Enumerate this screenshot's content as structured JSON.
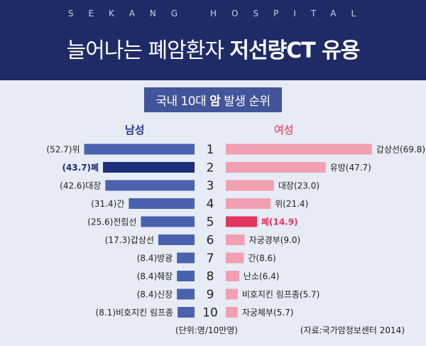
{
  "header": {
    "eyebrow": "SEKANG HOSPITAL",
    "title_plain": "늘어나는 폐암환자 ",
    "title_bold": "저선량CT 유용"
  },
  "subtitle": {
    "prefix": "국내 10대 ",
    "bold": "암",
    "suffix": " 발생 순위"
  },
  "columns": {
    "male": "남성",
    "female": "여성"
  },
  "footer": {
    "unit": "(단위:명/10만명)",
    "source": "(자료:국가암정보센터 2014)"
  },
  "colors": {
    "male_bar": "#4a62ae",
    "male_highlight": "#1c2d7a",
    "female_bar": "#f2a0b1",
    "female_highlight": "#e0365f",
    "highlight_text_male": "#1c2d7a",
    "highlight_text_female": "#e0365f"
  },
  "chart_data": {
    "type": "bar",
    "ranks": [
      1,
      2,
      3,
      4,
      5,
      6,
      7,
      8,
      9,
      10
    ],
    "male": [
      {
        "label": "위",
        "value": 52.7
      },
      {
        "label": "폐",
        "value": 43.7,
        "highlight": true
      },
      {
        "label": "대장",
        "value": 42.6
      },
      {
        "label": "간",
        "value": 31.4
      },
      {
        "label": "전립선",
        "value": 25.6
      },
      {
        "label": "갑상선",
        "value": 17.3
      },
      {
        "label": "방광",
        "value": 8.4
      },
      {
        "label": "췌장",
        "value": 8.4
      },
      {
        "label": "신장",
        "value": 8.4
      },
      {
        "label": "비호지킨 림프종",
        "value": 8.1
      }
    ],
    "female": [
      {
        "label": "갑상선",
        "value": 69.8
      },
      {
        "label": "유방",
        "value": 47.7
      },
      {
        "label": "대장",
        "value": 23.0
      },
      {
        "label": "위",
        "value": 21.4
      },
      {
        "label": "폐",
        "value": 14.9,
        "highlight": true
      },
      {
        "label": "자궁경부",
        "value": 9.0
      },
      {
        "label": "간",
        "value": 8.6
      },
      {
        "label": "난소",
        "value": 6.4
      },
      {
        "label": "비호지킨 림프종",
        "value": 5.7
      },
      {
        "label": "자궁체부",
        "value": 5.7
      }
    ]
  }
}
